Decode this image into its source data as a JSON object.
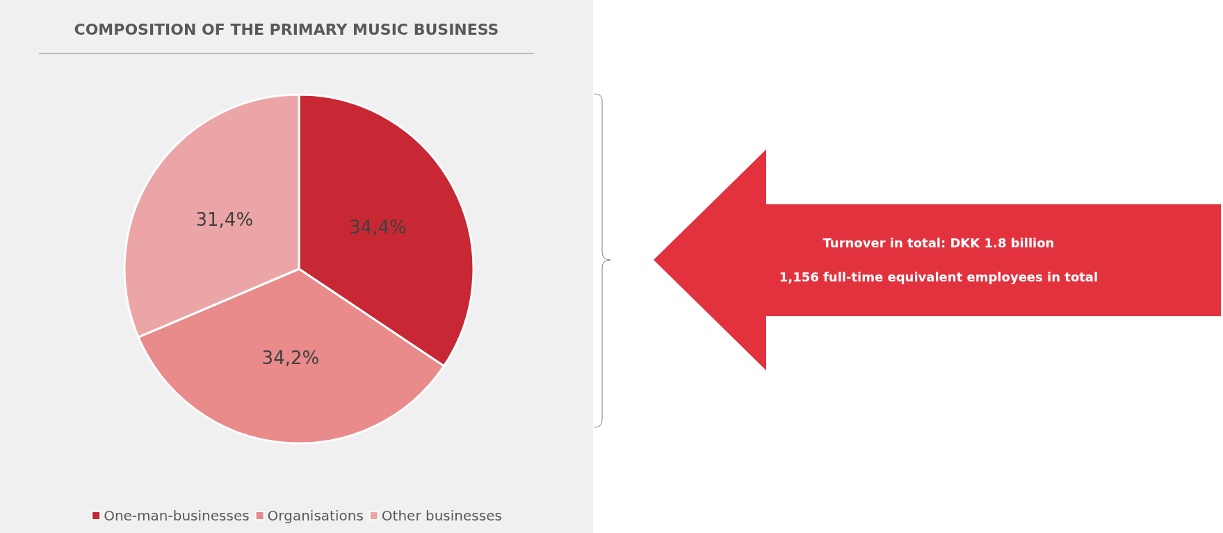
{
  "chart_data": {
    "type": "pie",
    "title": "COMPOSITION OF THE PRIMARY MUSIC BUSINESS",
    "categories": [
      "One-man-businesses",
      "Organisations",
      "Other businesses"
    ],
    "values": [
      34.4,
      34.2,
      31.4
    ],
    "colors": [
      "#c82833",
      "#e98a8b",
      "#eca5a6"
    ],
    "value_labels": [
      "34,4%",
      "34,2%",
      "31,4%"
    ],
    "legend": "bottom",
    "annotations": [
      "Turnover in total: DKK 1.8 billion",
      "1,156 full-time equivalent employees in total"
    ]
  }
}
